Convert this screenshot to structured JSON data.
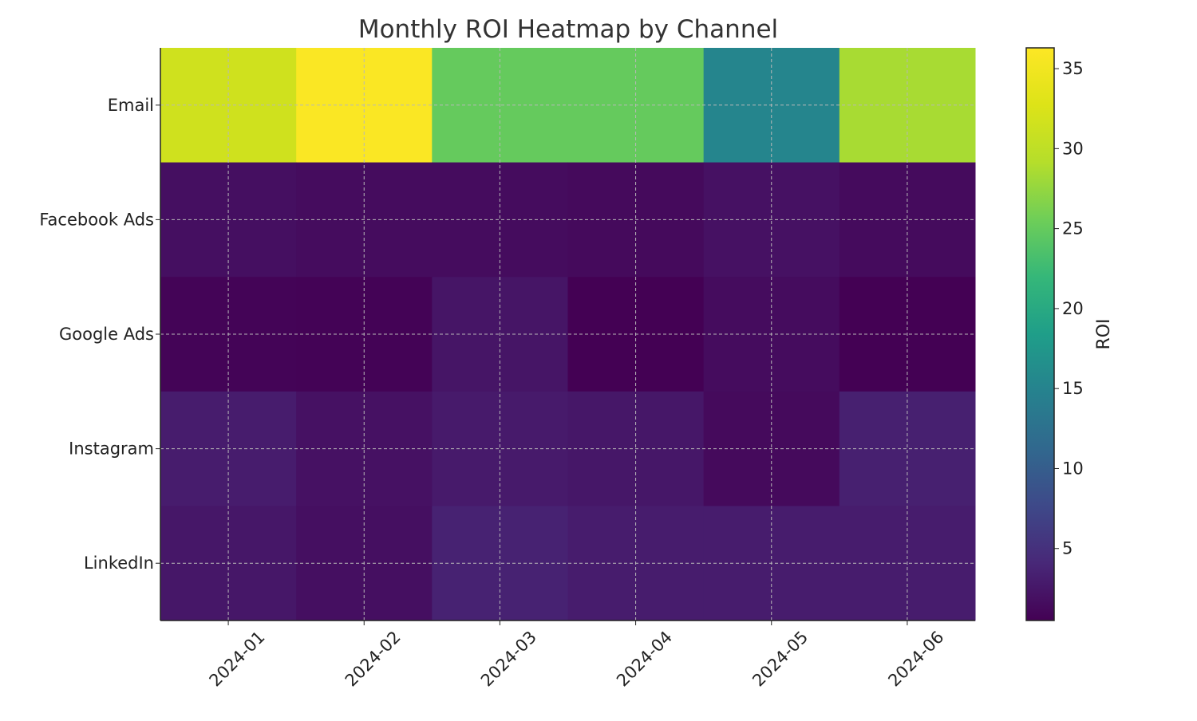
{
  "chart_data": {
    "type": "heatmap",
    "title": "Monthly ROI Heatmap by Channel",
    "xlabel": "",
    "ylabel": "",
    "x_categories": [
      "2024-01",
      "2024-02",
      "2024-03",
      "2024-04",
      "2024-05",
      "2024-06"
    ],
    "y_categories": [
      "Email",
      "Facebook Ads",
      "Google Ads",
      "Instagram",
      "LinkedIn"
    ],
    "values": [
      [
        31.5,
        36.0,
        25.0,
        25.0,
        15.2,
        28.5
      ],
      [
        1.8,
        1.5,
        1.5,
        1.3,
        2.0,
        1.4
      ],
      [
        0.8,
        0.7,
        2.3,
        0.5,
        1.5,
        0.5
      ],
      [
        3.0,
        2.0,
        2.8,
        2.5,
        1.3,
        3.3
      ],
      [
        2.5,
        1.8,
        3.5,
        3.0,
        3.0,
        3.0
      ]
    ],
    "colormap": "viridis",
    "value_range": [
      0.5,
      36.3
    ],
    "grid": true,
    "colorbar": {
      "label": "ROI",
      "ticks": [
        5,
        10,
        15,
        20,
        25,
        30,
        35
      ],
      "tick_labels": [
        "5",
        "10",
        "15",
        "20",
        "25",
        "30",
        "35"
      ]
    }
  }
}
